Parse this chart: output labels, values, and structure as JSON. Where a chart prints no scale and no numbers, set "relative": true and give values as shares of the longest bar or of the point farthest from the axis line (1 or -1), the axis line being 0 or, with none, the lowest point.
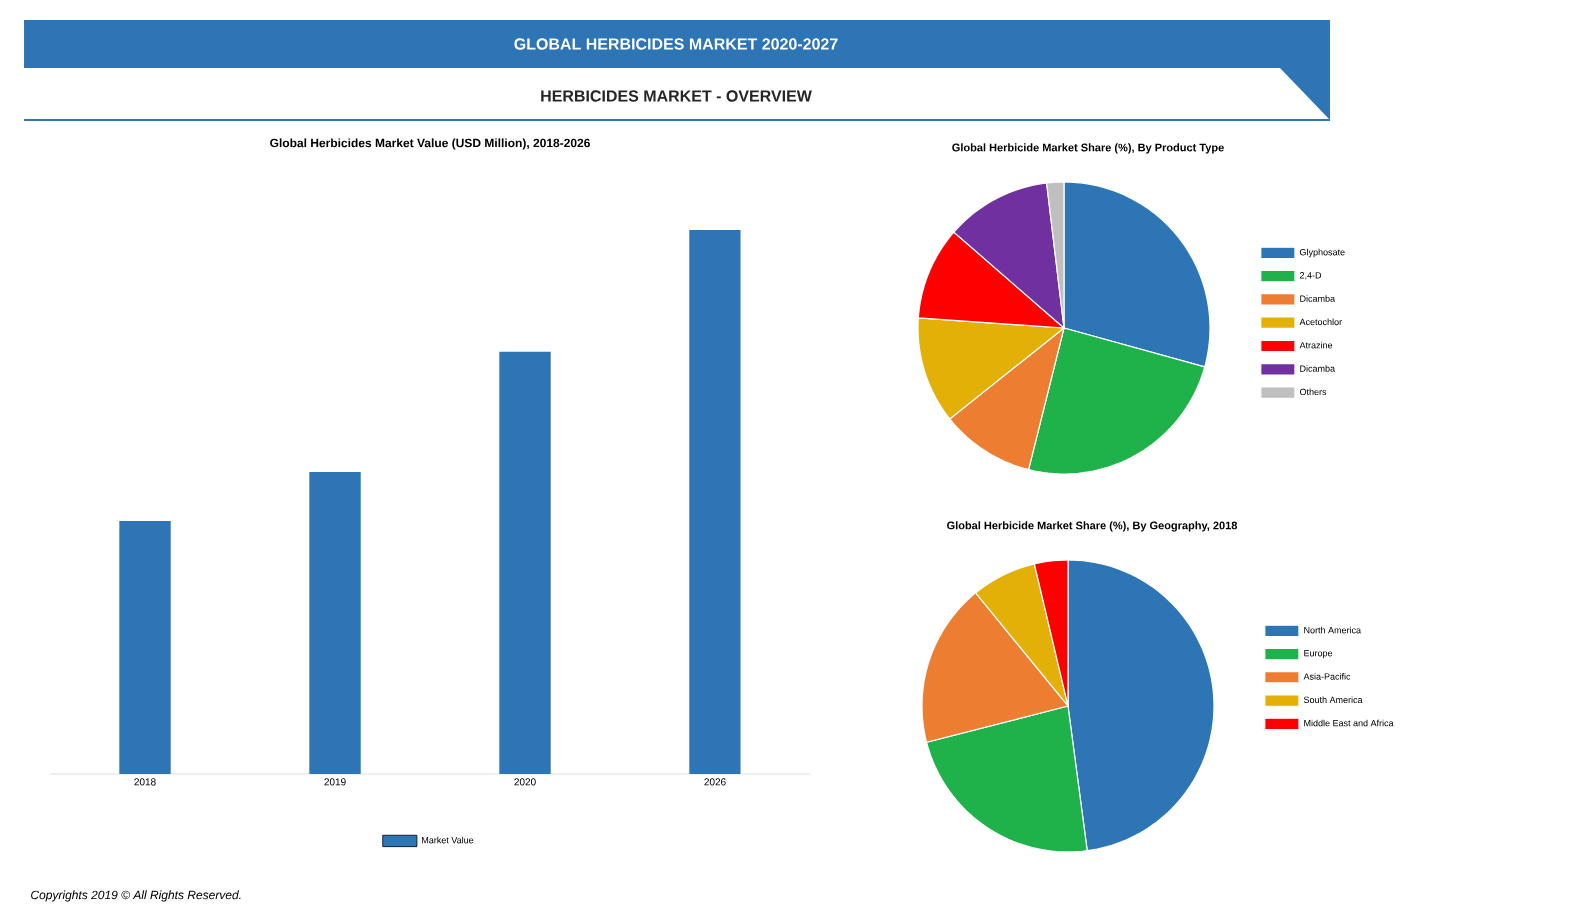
{
  "chart_data": [
    {
      "type": "bar",
      "title": "Global Herbicides Market Value (USD Million), 2018-2026",
      "categories": [
        "2018",
        "2019",
        "2020",
        "2026"
      ],
      "relative": true,
      "legend": "bottom",
      "series": [
        {
          "name": "Market Value",
          "color": "#2e75b6",
          "values": [
            0.465,
            0.555,
            0.776,
            1
          ]
        }
      ],
      "annotations": [
        "GLOBAL HERBICIDES MARKET  2020-2027",
        "HERBICIDES MARKET - OVERVIEW",
        "Copyrights 2019 © All Rights Reserved."
      ]
    },
    {
      "type": "pie",
      "title": "Global Herbicide Market Share (%), By Product Type",
      "legend": "right",
      "categories": [
        "Glyphosate",
        "2,4-D",
        "Dicamba",
        "Acetochlor",
        "Atrazine",
        "Dicamba",
        "Others"
      ],
      "values": [
        29.3,
        24.6,
        10.4,
        11.8,
        10.3,
        11.7,
        1.9
      ],
      "colors": [
        "#2e75b6",
        "#1fb24b",
        "#ed7d31",
        "#e3b008",
        "#ff0000",
        "#7030a0",
        "#bfbfbf"
      ]
    },
    {
      "type": "pie",
      "title": "Global Herbicide Market Share (%), By Geography, 2018",
      "legend": "right",
      "categories": [
        "North America",
        "Europe",
        "Asia-Pacific",
        "South America",
        "Middle East and Africa"
      ],
      "values": [
        47.9,
        23.1,
        18.1,
        7.2,
        3.7
      ],
      "colors": [
        "#2e75b6",
        "#1fb24b",
        "#ed7d31",
        "#e3b008",
        "#ff0000"
      ]
    }
  ]
}
